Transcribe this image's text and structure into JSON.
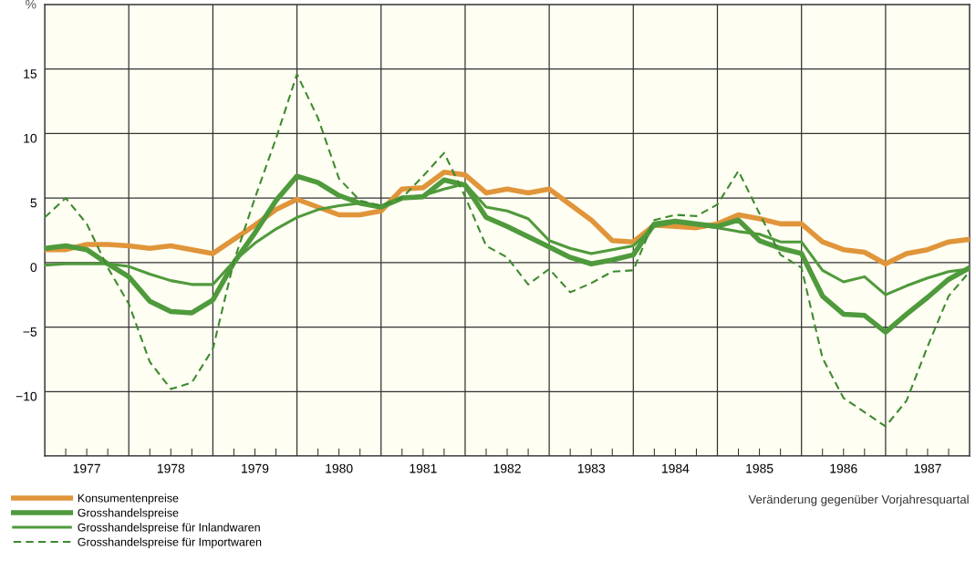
{
  "chart_data": {
    "type": "line",
    "ylabel": "%",
    "x": [
      1977,
      1977.25,
      1977.5,
      1977.75,
      1978,
      1978.25,
      1978.5,
      1978.75,
      1979,
      1979.25,
      1979.5,
      1979.75,
      1980,
      1980.25,
      1980.5,
      1980.75,
      1981,
      1981.25,
      1981.5,
      1981.75,
      1982,
      1982.25,
      1982.5,
      1982.75,
      1983,
      1983.25,
      1983.5,
      1983.75,
      1984,
      1984.25,
      1984.5,
      1984.75,
      1985,
      1985.25,
      1985.5,
      1985.75,
      1986,
      1986.25,
      1986.5,
      1986.75,
      1987,
      1987.25,
      1987.5,
      1987.75,
      1988
    ],
    "series": [
      {
        "name": "Konsumentenpreise",
        "color": "#e0953a",
        "line_style": "solid",
        "values": [
          1.0,
          1.0,
          1.4,
          1.4,
          1.3,
          1.1,
          1.3,
          1.0,
          0.7,
          1.8,
          2.9,
          4.1,
          4.9,
          4.3,
          3.7,
          3.7,
          4.0,
          5.7,
          5.8,
          7.0,
          6.8,
          5.4,
          5.7,
          5.4,
          5.7,
          4.5,
          3.3,
          1.7,
          1.6,
          2.9,
          2.8,
          2.7,
          3.0,
          3.7,
          3.4,
          3.0,
          3.0,
          1.6,
          1.0,
          0.8,
          -0.1,
          0.7,
          1.0,
          1.6,
          1.8
        ]
      },
      {
        "name": "Grosshandelspreise",
        "color": "#4f9a3c",
        "line_style": "solid",
        "values": [
          1.1,
          1.3,
          1.0,
          -0.1,
          -1.1,
          -3.0,
          -3.8,
          -3.9,
          -2.9,
          0.0,
          2.3,
          4.8,
          6.7,
          6.2,
          5.2,
          4.6,
          4.3,
          5.0,
          5.1,
          6.4,
          6.0,
          3.5,
          2.8,
          2.0,
          1.2,
          0.4,
          -0.1,
          0.2,
          0.6,
          3.0,
          3.2,
          3.0,
          2.8,
          3.3,
          1.7,
          1.1,
          0.7,
          -2.6,
          -4.0,
          -4.1,
          -5.4,
          -4.0,
          -2.7,
          -1.3,
          -0.4
        ]
      },
      {
        "name": "Grosshandelspreise für Inlandwaren",
        "color": "#4f9a3c",
        "line_style": "solid",
        "values": [
          -0.2,
          -0.1,
          -0.1,
          -0.1,
          -0.3,
          -0.9,
          -1.4,
          -1.7,
          -1.7,
          0.1,
          1.5,
          2.6,
          3.5,
          4.1,
          4.4,
          4.6,
          4.3,
          5.0,
          5.2,
          5.7,
          6.1,
          4.3,
          4.0,
          3.4,
          1.7,
          1.1,
          0.7,
          1.0,
          1.3,
          2.8,
          3.1,
          2.9,
          2.7,
          2.4,
          2.2,
          1.6,
          1.6,
          -0.6,
          -1.5,
          -1.1,
          -2.5,
          -1.8,
          -1.2,
          -0.7,
          -0.5
        ]
      },
      {
        "name": "Grosshandelspreise für Importwaren",
        "color": "#3d8a30",
        "line_style": "dashed",
        "values": [
          3.5,
          5.0,
          3.0,
          -0.4,
          -3.2,
          -7.7,
          -9.8,
          -9.3,
          -6.7,
          0.1,
          5.0,
          9.6,
          14.6,
          11.2,
          6.5,
          4.8,
          4.4,
          5.0,
          6.7,
          8.5,
          5.1,
          1.3,
          0.4,
          -1.7,
          -0.5,
          -2.3,
          -1.6,
          -0.7,
          -0.6,
          3.3,
          3.7,
          3.6,
          4.5,
          7.1,
          3.8,
          0.6,
          -0.4,
          -7.4,
          -10.5,
          -11.6,
          -12.7,
          -10.7,
          -6.5,
          -2.6,
          -0.7
        ]
      }
    ],
    "xlim": [
      1977,
      1988
    ],
    "xticks": [
      {
        "value": 1977,
        "label": null
      },
      {
        "value": 1977.25,
        "label": null
      },
      {
        "value": 1977.5,
        "label": "1977"
      },
      {
        "value": 1977.75,
        "label": null
      },
      {
        "value": 1978,
        "label": null
      },
      {
        "value": 1978.25,
        "label": null
      },
      {
        "value": 1978.5,
        "label": "1978"
      },
      {
        "value": 1978.75,
        "label": null
      },
      {
        "value": 1979,
        "label": null
      },
      {
        "value": 1979.25,
        "label": null
      },
      {
        "value": 1979.5,
        "label": "1979"
      },
      {
        "value": 1979.75,
        "label": null
      },
      {
        "value": 1980,
        "label": null
      },
      {
        "value": 1980.25,
        "label": null
      },
      {
        "value": 1980.5,
        "label": "1980"
      },
      {
        "value": 1980.75,
        "label": null
      },
      {
        "value": 1981,
        "label": null
      },
      {
        "value": 1981.25,
        "label": null
      },
      {
        "value": 1981.5,
        "label": "1981"
      },
      {
        "value": 1981.75,
        "label": null
      },
      {
        "value": 1982,
        "label": null
      },
      {
        "value": 1982.25,
        "label": null
      },
      {
        "value": 1982.5,
        "label": "1982"
      },
      {
        "value": 1982.75,
        "label": null
      },
      {
        "value": 1983,
        "label": null
      },
      {
        "value": 1983.25,
        "label": null
      },
      {
        "value": 1983.5,
        "label": "1983"
      },
      {
        "value": 1983.75,
        "label": null
      },
      {
        "value": 1984,
        "label": null
      },
      {
        "value": 1984.25,
        "label": null
      },
      {
        "value": 1984.5,
        "label": "1984"
      },
      {
        "value": 1984.75,
        "label": null
      },
      {
        "value": 1985,
        "label": null
      },
      {
        "value": 1985.25,
        "label": null
      },
      {
        "value": 1985.5,
        "label": "1985"
      },
      {
        "value": 1985.75,
        "label": null
      },
      {
        "value": 1986,
        "label": null
      },
      {
        "value": 1986.25,
        "label": null
      },
      {
        "value": 1986.5,
        "label": "1986"
      },
      {
        "value": 1986.75,
        "label": null
      },
      {
        "value": 1987,
        "label": null
      },
      {
        "value": 1987.25,
        "label": null
      },
      {
        "value": 1987.5,
        "label": "1987"
      },
      {
        "value": 1987.75,
        "label": null
      },
      {
        "value": 1988,
        "label": null
      }
    ],
    "ylim": [
      -15,
      20
    ],
    "yticks": [
      {
        "value": -15,
        "label": null
      },
      {
        "value": -10,
        "label": "−10"
      },
      {
        "value": -5,
        "label": "−5"
      },
      0,
      5,
      10,
      15,
      {
        "value": 20,
        "label": null
      }
    ],
    "grid": true,
    "legend": "bottom left",
    "annotations": [
      "Veränderung gegenüber Vorjahresquartal"
    ]
  }
}
